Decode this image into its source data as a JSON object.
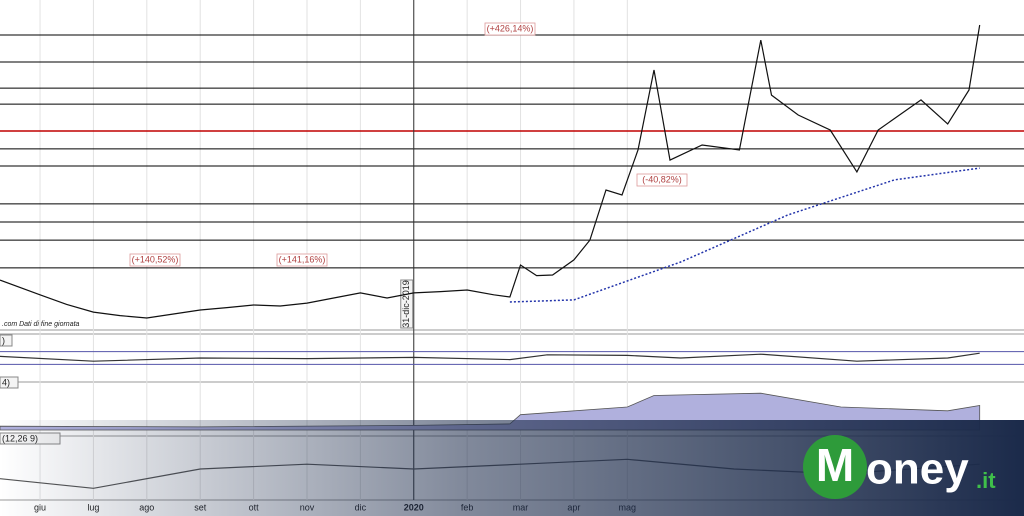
{
  "chart_data": [
    {
      "type": "line",
      "xlim": [
        -0.75,
        18.43
      ],
      "ylim": [
        0,
        100
      ],
      "xticks": [
        {
          "value": 0,
          "label": "giu"
        },
        {
          "value": 1,
          "label": "lug"
        },
        {
          "value": 2,
          "label": "ago"
        },
        {
          "value": 3,
          "label": "set"
        },
        {
          "value": 4,
          "label": "ott"
        },
        {
          "value": 5,
          "label": "nov"
        },
        {
          "value": 6,
          "label": "dic"
        },
        {
          "value": 7,
          "label": "2020"
        },
        {
          "value": 8,
          "label": "feb"
        },
        {
          "value": 9,
          "label": "mar"
        },
        {
          "value": 10,
          "label": "apr"
        },
        {
          "value": 11,
          "label": "mag"
        }
      ],
      "levels": [
        92.2,
        83.75,
        75.6,
        70.6,
        56.6,
        51.25,
        39.4,
        33.75,
        28.1,
        19.4
      ],
      "level_color": "#000000",
      "highlight_level": {
        "value": 62.2,
        "color": "#c00000"
      },
      "divider": {
        "value": 7,
        "label": "31-dic-2019"
      },
      "source": ".com Dati di fine giornata",
      "annotations": [
        "(+426,14%)",
        "(-40,82%)",
        "(+140,52%)",
        "(+141,16%)"
      ],
      "series": [
        {
          "color": "#111111",
          "x": [
            -0.75,
            0,
            0.5,
            1,
            1.5,
            2,
            2.5,
            3,
            3.5,
            4,
            4.5,
            5,
            5.5,
            6,
            6.5,
            7,
            7.5,
            8,
            8.5,
            8.8,
            9,
            9.3,
            9.6,
            10,
            10.3,
            10.6,
            10.9,
            11.2,
            11.5,
            11.8,
            12.4,
            13.1,
            13.5,
            13.7,
            14.2,
            14.8,
            15.3,
            15.7,
            16.5,
            17.0,
            17.4,
            17.6
          ],
          "values": [
            15.6,
            11,
            8,
            5.6,
            4.5,
            3.75,
            5,
            6.25,
            7,
            7.8,
            7.5,
            8.4,
            10,
            11.6,
            10,
            11.6,
            12,
            12.5,
            11,
            10.3,
            20.3,
            17,
            17.2,
            21.9,
            28.1,
            43.75,
            42.2,
            56.25,
            81.25,
            53.1,
            57.8,
            56.25,
            90.6,
            73.4,
            67.2,
            62.5,
            49.4,
            62.5,
            71.9,
            64.4,
            75,
            95.3
          ]
        },
        {
          "color": "#2233aa",
          "dashed": true,
          "x": [
            8.8,
            10,
            12,
            14,
            16,
            17.6
          ],
          "values": [
            8.75,
            9.4,
            21.25,
            35.9,
            46.9,
            50.6
          ]
        }
      ]
    },
    {
      "type": "line",
      "title": ")",
      "ylim": [
        0,
        100
      ],
      "bands": [
        30,
        70
      ],
      "band_color": "#5555aa",
      "series": [
        {
          "color": "#333333",
          "x": [
            -0.75,
            1,
            3,
            5,
            7,
            8.8,
            9.5,
            11,
            12,
            13.5,
            15.3,
            17,
            17.6
          ],
          "values": [
            55,
            40,
            50,
            48,
            52,
            45,
            60,
            58,
            50,
            62,
            40,
            50,
            65
          ]
        }
      ]
    },
    {
      "type": "area",
      "title": "4)",
      "ylim": [
        0,
        60
      ],
      "series": [
        {
          "color": "#b0b0dd",
          "x": [
            -0.75,
            3,
            7,
            8.8,
            9,
            11,
            11.5,
            13.5,
            15,
            17,
            17.6
          ],
          "values": [
            5,
            4,
            6,
            8,
            20,
            30,
            45,
            48,
            30,
            25,
            32
          ]
        }
      ]
    },
    {
      "type": "line",
      "title": "(12,26 9)",
      "ylim": [
        -3,
        3
      ],
      "series": [
        {
          "color": "#555555",
          "x": [
            -0.75,
            1,
            3,
            5,
            7,
            9,
            11,
            13,
            15,
            17.6
          ],
          "values": [
            -1,
            -2,
            0,
            0.5,
            0,
            0.5,
            1,
            0,
            -0.5,
            0.5
          ]
        }
      ]
    }
  ],
  "watermark": {
    "initial": "M",
    "rest": "oney",
    "suffix": ".it"
  }
}
